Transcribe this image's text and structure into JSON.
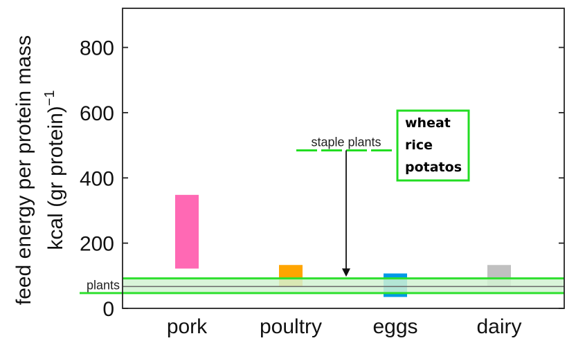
{
  "chart_data": {
    "type": "bar",
    "categories": [
      "pork",
      "poultry",
      "eggs",
      "dairy"
    ],
    "ylabel_line1": "feed energy per protein mass",
    "ylabel_line2": "kcal (gr protein)",
    "ylabel_exponent": "−1",
    "ylim": [
      0,
      920
    ],
    "yticks": [
      0,
      200,
      400,
      600,
      800
    ],
    "grid": false,
    "series": [
      {
        "ranges": [
          [
            122,
            348
          ],
          [
            68,
            133
          ],
          [
            35,
            107
          ],
          [
            68,
            133
          ]
        ],
        "colors": [
          "#ff69b4",
          "#ffa500",
          "#0099e6",
          "#c0c0c0"
        ]
      }
    ],
    "plants_band": {
      "range": [
        47,
        92
      ],
      "line": 67,
      "color": "#2ee02e",
      "fill": "#d2f3d2",
      "label": "plants"
    },
    "annotation": {
      "label": "staple plants",
      "arrow_from": 495,
      "arrow_to": 97,
      "items": [
        "wheat",
        "rice",
        "potatos"
      ],
      "border_color": "#22dd22"
    }
  }
}
